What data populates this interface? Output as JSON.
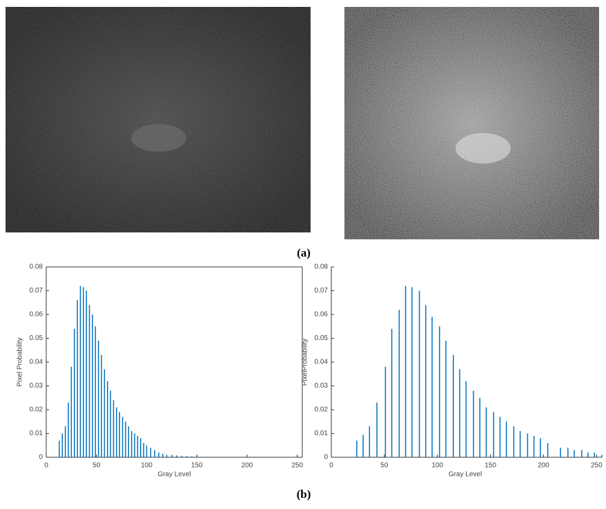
{
  "captions": [
    "(a)",
    "(b)"
  ],
  "chart_data": [
    {
      "type": "bar",
      "x_label": "Gray Level",
      "y_label": "Pixel Probability",
      "color": "#0072bd",
      "x": [
        13,
        16,
        19,
        22,
        25,
        28,
        31,
        34,
        37,
        40,
        43,
        46,
        49,
        52,
        55,
        58,
        61,
        64,
        67,
        70,
        73,
        76,
        79,
        82,
        85,
        88,
        91,
        94,
        97,
        100,
        104,
        108,
        112,
        116,
        120,
        125,
        130,
        135,
        140,
        145,
        150,
        155
      ],
      "values": [
        0.007,
        0.01,
        0.013,
        0.023,
        0.038,
        0.054,
        0.066,
        0.072,
        0.0715,
        0.07,
        0.064,
        0.06,
        0.055,
        0.049,
        0.043,
        0.037,
        0.032,
        0.028,
        0.024,
        0.021,
        0.019,
        0.017,
        0.015,
        0.013,
        0.011,
        0.01,
        0.009,
        0.008,
        0.006,
        0.005,
        0.004,
        0.003,
        0.002,
        0.0015,
        0.001,
        0.001,
        0.0008,
        0.0006,
        0.0005,
        0.0004,
        0.0003,
        0.0002
      ],
      "xlim": [
        0,
        255
      ],
      "xticks": [
        0,
        50,
        100,
        150,
        200,
        250
      ],
      "ylim": [
        0,
        0.08
      ],
      "yticks": [
        0,
        0.01,
        0.02,
        0.03,
        0.04,
        0.05,
        0.06,
        0.07,
        0.08
      ]
    },
    {
      "type": "bar",
      "x_label": "Gray Level",
      "y_label": "PixelProbability",
      "color": "#0072bd",
      "x": [
        24,
        30,
        36,
        43,
        51,
        57,
        64,
        70,
        76,
        83,
        89,
        95,
        102,
        108,
        115,
        121,
        127,
        134,
        140,
        146,
        153,
        159,
        165,
        172,
        178,
        185,
        191,
        197,
        204,
        216,
        223,
        229,
        236,
        242,
        248,
        255
      ],
      "values": [
        0.007,
        0.0095,
        0.013,
        0.023,
        0.038,
        0.054,
        0.062,
        0.072,
        0.0715,
        0.07,
        0.064,
        0.059,
        0.055,
        0.049,
        0.043,
        0.037,
        0.032,
        0.028,
        0.025,
        0.021,
        0.019,
        0.017,
        0.015,
        0.013,
        0.011,
        0.01,
        0.009,
        0.008,
        0.006,
        0.004,
        0.004,
        0.003,
        0.003,
        0.002,
        0.002,
        0.001
      ],
      "xlim": [
        0,
        255
      ],
      "xticks": [
        0,
        50,
        100,
        150,
        200,
        250
      ],
      "ylim": [
        0,
        0.08
      ],
      "yticks": [
        0,
        0.01,
        0.02,
        0.03,
        0.04,
        0.05,
        0.06,
        0.07,
        0.08
      ]
    }
  ]
}
